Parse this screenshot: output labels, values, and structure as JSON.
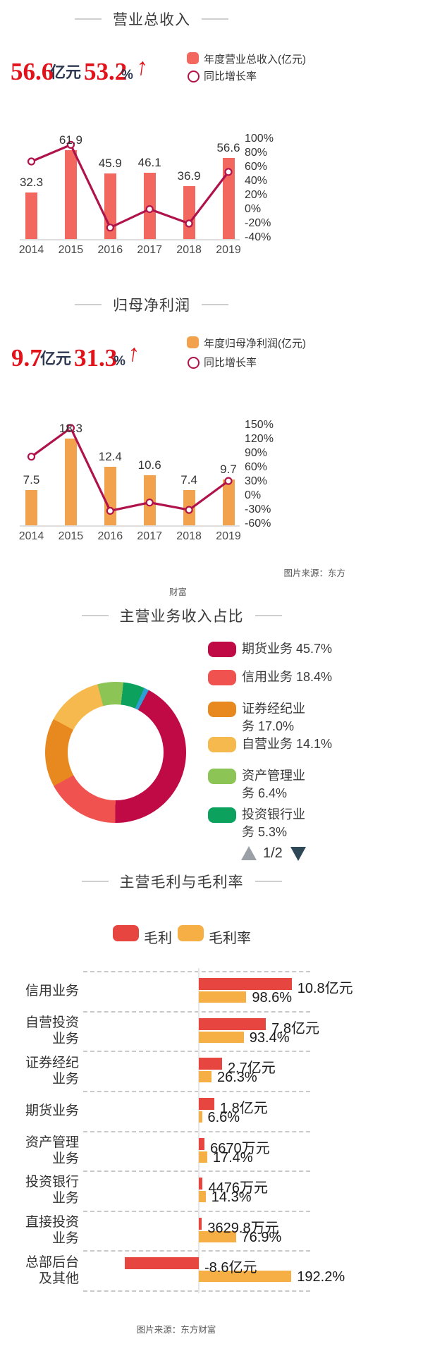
{
  "revenue_section": {
    "title": "营业总收入",
    "stat_value": "56.6",
    "stat_unit": "亿元",
    "stat_growth": "53.2",
    "stat_pct_sign": "%",
    "stat_arrow": "↑",
    "legend_bar_label": "年度营业总收入(亿元)",
    "legend_line_label": "同比增长率"
  },
  "profit_section": {
    "title": "归母净利润",
    "stat_value": "9.7",
    "stat_unit": "亿元",
    "stat_growth": "31.3",
    "stat_pct_sign": "%",
    "stat_arrow": "↑",
    "legend_bar_label": "年度归母净利润(亿元)",
    "legend_line_label": "同比增长率"
  },
  "donut_section": {
    "title": "主营业务收入占比",
    "pagination": "1/2"
  },
  "hbar_section": {
    "title": "主营毛利与毛利率",
    "legend_bar": "毛利",
    "legend_pct": "毛利率"
  },
  "sources": {
    "mid_line1": "图片来源：东方",
    "mid_line2": "财富",
    "bottom": "图片来源：东方财富"
  },
  "colors": {
    "revenue_bar": "#F2685E",
    "profit_bar": "#F2A24C",
    "growth_line": "#B0134B",
    "stat_red": "#E2121B",
    "stat_navy": "#2F3A52",
    "hbar_profit": "#E64540",
    "hbar_margin": "#F5AF45"
  },
  "chart_data": [
    {
      "type": "bar+line",
      "title": "营业总收入",
      "categories": [
        "2014",
        "2015",
        "2016",
        "2017",
        "2018",
        "2019"
      ],
      "series": [
        {
          "name": "年度营业总收入(亿元)",
          "chart": "bar",
          "unit": "亿元",
          "values": [
            32.3,
            61.9,
            45.9,
            46.1,
            36.9,
            56.6
          ],
          "color": "#F2685E"
        },
        {
          "name": "同比增长率",
          "chart": "line",
          "unit": "%",
          "values": [
            68,
            91.6,
            -25.8,
            0.4,
            -20,
            53.2
          ],
          "color": "#B0134B"
        }
      ],
      "right_axis": {
        "ticks": [
          "100%",
          "80%",
          "60%",
          "40%",
          "20%",
          "0%",
          "-20%",
          "-40%"
        ],
        "range": [
          -40,
          100
        ]
      },
      "legend_position": "top-right"
    },
    {
      "type": "bar+line",
      "title": "归母净利润",
      "categories": [
        "2014",
        "2015",
        "2016",
        "2017",
        "2018",
        "2019"
      ],
      "series": [
        {
          "name": "年度归母净利润(亿元)",
          "chart": "bar",
          "unit": "亿元",
          "values": [
            7.5,
            18.3,
            12.4,
            10.6,
            7.4,
            9.7
          ],
          "color": "#F2A24C"
        },
        {
          "name": "同比增长率",
          "chart": "line",
          "unit": "%",
          "values": [
            83,
            144,
            -32.2,
            -14.5,
            -30.2,
            31.3
          ],
          "color": "#B0134B"
        }
      ],
      "right_axis": {
        "ticks": [
          "150%",
          "120%",
          "90%",
          "60%",
          "30%",
          "0%",
          "-30%",
          "-60%"
        ],
        "range": [
          -60,
          150
        ]
      },
      "legend_position": "top-right"
    },
    {
      "type": "pie",
      "title": "主营业务收入占比",
      "donut": true,
      "segments": [
        {
          "label": "期货业务",
          "value": 45.7,
          "color": "#C00A46",
          "legend_lines": [
            "期货业务 45.7%"
          ]
        },
        {
          "label": "信用业务",
          "value": 18.4,
          "color": "#F0534F",
          "legend_lines": [
            "信用业务 18.4%"
          ]
        },
        {
          "label": "证券经纪业务",
          "value": 17.0,
          "color": "#E8891F",
          "legend_lines": [
            "证券经纪业",
            "务 17.0%"
          ]
        },
        {
          "label": "自营业务",
          "value": 14.1,
          "color": "#F6B94E",
          "legend_lines": [
            "自营业务 14.1%"
          ]
        },
        {
          "label": "资产管理业务",
          "value": 6.4,
          "color": "#8CC455",
          "legend_lines": [
            "资产管理业",
            "务 6.4%"
          ]
        },
        {
          "label": "投资银行业务",
          "value": 5.3,
          "color": "#0CA25E",
          "legend_lines": [
            "投资银行业",
            "务 5.3%"
          ]
        }
      ],
      "unlabeled_slice": {
        "value": 1.2,
        "color": "#2E9FD4"
      },
      "page_indicator": "1/2"
    },
    {
      "type": "hbar",
      "title": "主营毛利与毛利率",
      "series_names": [
        "毛利",
        "毛利率"
      ],
      "rows": [
        {
          "label": "信用业务",
          "label_lines": [
            "信用业务"
          ],
          "profit_label": "10.8亿元",
          "profit_yi": 10.8,
          "margin_label": "98.6%",
          "margin_pct": 98.6
        },
        {
          "label": "自营投资业务",
          "label_lines": [
            "自营投资",
            "业务"
          ],
          "profit_label": "7.8亿元",
          "profit_yi": 7.8,
          "margin_label": "93.4%",
          "margin_pct": 93.4
        },
        {
          "label": "证券经纪业务",
          "label_lines": [
            "证券经纪",
            "业务"
          ],
          "profit_label": "2.7亿元",
          "profit_yi": 2.7,
          "margin_label": "26.3%",
          "margin_pct": 26.3
        },
        {
          "label": "期货业务",
          "label_lines": [
            "期货业务"
          ],
          "profit_label": "1.8亿元",
          "profit_yi": 1.8,
          "margin_label": "6.6%",
          "margin_pct": 6.6
        },
        {
          "label": "资产管理业务",
          "label_lines": [
            "资产管理",
            "业务"
          ],
          "profit_label": "6670万元",
          "profit_yi": 0.667,
          "margin_label": "17.4%",
          "margin_pct": 17.4
        },
        {
          "label": "投资银行业务",
          "label_lines": [
            "投资银行",
            "业务"
          ],
          "profit_label": "4476万元",
          "profit_yi": 0.4476,
          "margin_label": "14.3%",
          "margin_pct": 14.3
        },
        {
          "label": "直接投资业务",
          "label_lines": [
            "直接投资",
            "业务"
          ],
          "profit_label": "3629.8万元",
          "profit_yi": 0.36298,
          "margin_label": "76.9%",
          "margin_pct": 76.9
        },
        {
          "label": "总部后台及其他",
          "label_lines": [
            "总部后台",
            "及其他"
          ],
          "profit_label": "-8.6亿元",
          "profit_yi": -8.6,
          "margin_label": "192.2%",
          "margin_pct": 192.2
        }
      ],
      "bar_color": "#E64540",
      "pct_color": "#F5AF45"
    }
  ]
}
